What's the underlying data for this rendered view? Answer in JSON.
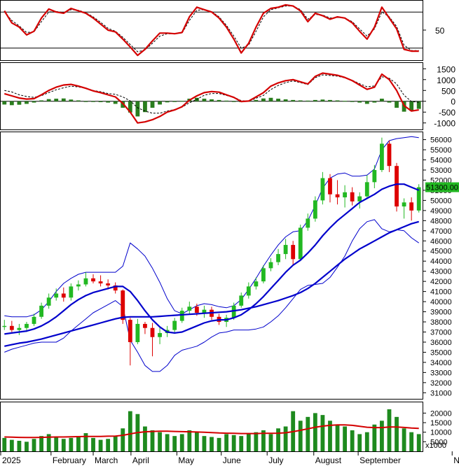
{
  "chart_data": [
    {
      "id": "stochastic",
      "type": "line",
      "yticks": [
        50
      ],
      "levels": [
        20,
        80
      ],
      "series": [
        {
          "color": "#d40000",
          "style": "solid",
          "values": [
            82,
            62,
            55,
            42,
            48,
            70,
            85,
            80,
            78,
            86,
            82,
            78,
            70,
            60,
            50,
            47,
            35,
            22,
            8,
            18,
            32,
            45,
            45,
            44,
            46,
            72,
            88,
            84,
            80,
            70,
            55,
            35,
            12,
            28,
            55,
            78,
            86,
            88,
            92,
            90,
            82,
            64,
            78,
            74,
            68,
            72,
            70,
            62,
            48,
            35,
            55,
            88,
            70,
            52,
            18,
            15,
            15
          ]
        },
        {
          "color": "#000000",
          "style": "dashed",
          "values": [
            80,
            66,
            57,
            46,
            47,
            64,
            80,
            81,
            79,
            84,
            83,
            79,
            72,
            63,
            53,
            48,
            38,
            26,
            14,
            17,
            28,
            40,
            44,
            44,
            45,
            66,
            83,
            84,
            81,
            72,
            58,
            40,
            20,
            25,
            48,
            72,
            84,
            87,
            90,
            90,
            84,
            68,
            76,
            75,
            70,
            71,
            70,
            64,
            52,
            40,
            52,
            80,
            72,
            56,
            25,
            16,
            16
          ]
        }
      ]
    },
    {
      "id": "macd",
      "type": "bar+line",
      "yticks": [
        1500,
        1000,
        500,
        0,
        -500,
        -1000
      ],
      "ylim": [
        -1300,
        1800
      ],
      "histogram": [
        -150,
        -180,
        -160,
        -120,
        -60,
        40,
        100,
        120,
        130,
        80,
        40,
        0,
        -20,
        -40,
        -60,
        -120,
        -300,
        -520,
        -700,
        -500,
        -300,
        -150,
        -50,
        -20,
        20,
        120,
        160,
        120,
        90,
        60,
        30,
        -10,
        -40,
        10,
        60,
        130,
        160,
        120,
        90,
        60,
        40,
        30,
        60,
        80,
        60,
        40,
        20,
        -20,
        -60,
        -120,
        -60,
        120,
        -60,
        -300,
        -480,
        -440,
        -350
      ],
      "series": [
        {
          "color": "#d40000",
          "style": "solid",
          "values": [
            350,
            250,
            150,
            100,
            120,
            300,
            500,
            650,
            750,
            780,
            700,
            600,
            480,
            400,
            300,
            200,
            -100,
            -500,
            -1000,
            -950,
            -850,
            -700,
            -500,
            -400,
            -250,
            50,
            250,
            400,
            450,
            420,
            300,
            180,
            -10,
            10,
            200,
            400,
            700,
            850,
            950,
            1000,
            900,
            800,
            1150,
            1300,
            1250,
            1200,
            1100,
            950,
            750,
            550,
            650,
            1250,
            1000,
            500,
            -200,
            -450,
            -400
          ]
        },
        {
          "color": "#000000",
          "style": "dashed",
          "values": [
            500,
            430,
            300,
            220,
            180,
            260,
            400,
            530,
            620,
            700,
            660,
            600,
            500,
            440,
            360,
            320,
            200,
            20,
            -300,
            -450,
            -550,
            -550,
            -450,
            -380,
            -270,
            -70,
            90,
            280,
            360,
            360,
            270,
            190,
            30,
            0,
            140,
            270,
            540,
            730,
            860,
            940,
            860,
            770,
            1090,
            1220,
            1190,
            1160,
            1080,
            970,
            810,
            670,
            710,
            1130,
            1060,
            800,
            280,
            -10,
            -50
          ]
        }
      ]
    },
    {
      "id": "price",
      "type": "candlestick",
      "yticks": [
        56000,
        55000,
        54000,
        53000,
        52000,
        51000,
        50000,
        49000,
        48000,
        47000,
        46000,
        45000,
        44000,
        43000,
        42000,
        41000,
        40000,
        39000,
        38000,
        37000,
        36000,
        35000,
        34000,
        33000,
        32000,
        31000
      ],
      "ylim": [
        30400,
        56800
      ],
      "last_price_label": "51300.00",
      "candles": [
        {
          "o": 37500,
          "h": 38200,
          "l": 37200,
          "c": 37600
        },
        {
          "o": 37600,
          "h": 38100,
          "l": 37000,
          "c": 37200
        },
        {
          "o": 37200,
          "h": 37800,
          "l": 36700,
          "c": 37400
        },
        {
          "o": 37400,
          "h": 38000,
          "l": 37000,
          "c": 37800
        },
        {
          "o": 37800,
          "h": 38800,
          "l": 37600,
          "c": 38500
        },
        {
          "o": 38500,
          "h": 39900,
          "l": 38300,
          "c": 39600
        },
        {
          "o": 39600,
          "h": 40800,
          "l": 39300,
          "c": 40400
        },
        {
          "o": 40400,
          "h": 41300,
          "l": 40100,
          "c": 40800
        },
        {
          "o": 40800,
          "h": 41400,
          "l": 40000,
          "c": 40400
        },
        {
          "o": 40400,
          "h": 41800,
          "l": 40100,
          "c": 41500
        },
        {
          "o": 41500,
          "h": 42100,
          "l": 41100,
          "c": 41700
        },
        {
          "o": 41700,
          "h": 42900,
          "l": 41500,
          "c": 42300
        },
        {
          "o": 42300,
          "h": 42700,
          "l": 41800,
          "c": 42000
        },
        {
          "o": 42000,
          "h": 42600,
          "l": 41500,
          "c": 41800
        },
        {
          "o": 41800,
          "h": 42200,
          "l": 41200,
          "c": 41600
        },
        {
          "o": 41600,
          "h": 41900,
          "l": 40800,
          "c": 41100
        },
        {
          "o": 41100,
          "h": 41200,
          "l": 37800,
          "c": 38200
        },
        {
          "o": 38200,
          "h": 38400,
          "l": 33700,
          "c": 36000
        },
        {
          "o": 36000,
          "h": 38300,
          "l": 35800,
          "c": 37800
        },
        {
          "o": 37800,
          "h": 38000,
          "l": 36800,
          "c": 37400
        },
        {
          "o": 37400,
          "h": 37900,
          "l": 34600,
          "c": 36500
        },
        {
          "o": 36500,
          "h": 37400,
          "l": 35800,
          "c": 36900
        },
        {
          "o": 36900,
          "h": 37600,
          "l": 36500,
          "c": 37200
        },
        {
          "o": 37200,
          "h": 38400,
          "l": 37000,
          "c": 38100
        },
        {
          "o": 38100,
          "h": 39400,
          "l": 37900,
          "c": 39100
        },
        {
          "o": 39100,
          "h": 40000,
          "l": 38700,
          "c": 39500
        },
        {
          "o": 39500,
          "h": 39800,
          "l": 38600,
          "c": 38900
        },
        {
          "o": 38900,
          "h": 39600,
          "l": 38400,
          "c": 39200
        },
        {
          "o": 39200,
          "h": 39500,
          "l": 38200,
          "c": 38500
        },
        {
          "o": 38500,
          "h": 38800,
          "l": 37700,
          "c": 38000
        },
        {
          "o": 38000,
          "h": 38700,
          "l": 37500,
          "c": 38400
        },
        {
          "o": 38400,
          "h": 39900,
          "l": 38200,
          "c": 39600
        },
        {
          "o": 39600,
          "h": 40900,
          "l": 39400,
          "c": 40600
        },
        {
          "o": 40600,
          "h": 41900,
          "l": 40300,
          "c": 41500
        },
        {
          "o": 41500,
          "h": 42400,
          "l": 41200,
          "c": 42000
        },
        {
          "o": 42000,
          "h": 43600,
          "l": 41800,
          "c": 43300
        },
        {
          "o": 43300,
          "h": 44300,
          "l": 43000,
          "c": 43900
        },
        {
          "o": 43900,
          "h": 45200,
          "l": 43600,
          "c": 44700
        },
        {
          "o": 44700,
          "h": 46200,
          "l": 44200,
          "c": 45600
        },
        {
          "o": 45600,
          "h": 46000,
          "l": 43600,
          "c": 44200
        },
        {
          "o": 44200,
          "h": 47600,
          "l": 44000,
          "c": 47300
        },
        {
          "o": 47300,
          "h": 48700,
          "l": 47000,
          "c": 48200
        },
        {
          "o": 48200,
          "h": 50400,
          "l": 47900,
          "c": 50000
        },
        {
          "o": 50000,
          "h": 52800,
          "l": 49600,
          "c": 52200
        },
        {
          "o": 52200,
          "h": 52600,
          "l": 49800,
          "c": 50600
        },
        {
          "o": 50600,
          "h": 52000,
          "l": 49600,
          "c": 50300
        },
        {
          "o": 50300,
          "h": 51500,
          "l": 49300,
          "c": 50800
        },
        {
          "o": 50800,
          "h": 51300,
          "l": 49500,
          "c": 49900
        },
        {
          "o": 49900,
          "h": 50800,
          "l": 49200,
          "c": 50400
        },
        {
          "o": 50400,
          "h": 52500,
          "l": 50200,
          "c": 51800
        },
        {
          "o": 51800,
          "h": 53500,
          "l": 51200,
          "c": 53000
        },
        {
          "o": 53000,
          "h": 56200,
          "l": 52800,
          "c": 55600
        },
        {
          "o": 55600,
          "h": 55900,
          "l": 52800,
          "c": 53400
        },
        {
          "o": 53400,
          "h": 53700,
          "l": 48900,
          "c": 49400
        },
        {
          "o": 49400,
          "h": 50200,
          "l": 48200,
          "c": 49800
        },
        {
          "o": 49800,
          "h": 50300,
          "l": 48000,
          "c": 49000
        },
        {
          "o": 49000,
          "h": 51600,
          "l": 48800,
          "c": 51300
        }
      ],
      "series": [
        {
          "color": "#0000cc",
          "role": "ma20",
          "values": [
            36800,
            36900,
            37000,
            37100,
            37300,
            37600,
            38000,
            38500,
            39100,
            39700,
            40200,
            40600,
            40900,
            41100,
            41300,
            41500,
            41500,
            41000,
            40100,
            39100,
            38200,
            37500,
            37000,
            36900,
            37000,
            37300,
            37600,
            37900,
            38100,
            38200,
            38200,
            38400,
            38700,
            39200,
            39800,
            40500,
            41300,
            42100,
            42900,
            43600,
            44100,
            44800,
            45600,
            46500,
            47300,
            48000,
            48600,
            49200,
            49800,
            50200,
            50600,
            51100,
            51400,
            51600,
            51600,
            51300,
            51000
          ]
        },
        {
          "color": "#0000cc",
          "role": "ma50",
          "values": [
            35600,
            35750,
            35900,
            36000,
            36150,
            36300,
            36500,
            36700,
            36900,
            37100,
            37300,
            37500,
            37700,
            37900,
            38100,
            38300,
            38450,
            38500,
            38500,
            38500,
            38500,
            38550,
            38600,
            38650,
            38700,
            38750,
            38800,
            38850,
            38900,
            38950,
            39000,
            39100,
            39200,
            39350,
            39500,
            39700,
            39900,
            40100,
            40350,
            40600,
            40900,
            41300,
            41800,
            42400,
            43000,
            43600,
            44200,
            44700,
            45200,
            45600,
            46000,
            46400,
            46800,
            47100,
            47400,
            47700,
            47900
          ]
        },
        {
          "color": "#0000cc",
          "role": "bb-upper",
          "values": [
            38600,
            38500,
            38500,
            38500,
            38700,
            39200,
            40000,
            41000,
            41800,
            42300,
            42700,
            42900,
            42900,
            42900,
            42900,
            42900,
            43500,
            45800,
            45200,
            44500,
            43300,
            41900,
            40300,
            39100,
            38800,
            39200,
            39600,
            39800,
            39700,
            39500,
            39400,
            39600,
            40200,
            41200,
            42300,
            43500,
            44600,
            45600,
            46400,
            46900,
            47000,
            48000,
            49500,
            51200,
            52200,
            52600,
            52700,
            52400,
            52400,
            52500,
            53100,
            55000,
            55900,
            56100,
            56200,
            56300,
            56200
          ]
        },
        {
          "color": "#0000cc",
          "role": "bb-lower",
          "values": [
            35000,
            35300,
            35500,
            35700,
            35900,
            36000,
            36000,
            36000,
            36400,
            37100,
            37700,
            38300,
            38900,
            39300,
            39700,
            40100,
            39500,
            36200,
            35000,
            33700,
            33100,
            33100,
            33700,
            34700,
            35200,
            35400,
            35600,
            36000,
            36500,
            36900,
            37000,
            37200,
            37200,
            37200,
            37300,
            37500,
            38000,
            38600,
            39400,
            40300,
            41200,
            41600,
            41700,
            41800,
            42400,
            43400,
            44500,
            46000,
            47200,
            47900,
            48100,
            47200,
            46900,
            47100,
            47000,
            46300,
            45800
          ]
        }
      ]
    },
    {
      "id": "volume",
      "type": "bar+line",
      "yticks": [
        20000,
        15000,
        10000,
        5000
      ],
      "ylim": [
        0,
        26000
      ],
      "unit_label": "x1000",
      "volume": [
        7000,
        6000,
        5500,
        5000,
        6500,
        8000,
        9000,
        7500,
        6500,
        7000,
        8000,
        9500,
        7000,
        6000,
        6500,
        8000,
        12000,
        21000,
        19500,
        13000,
        11000,
        10000,
        9000,
        8000,
        9000,
        11000,
        10000,
        8000,
        7500,
        7000,
        9000,
        8500,
        8000,
        9000,
        10000,
        11000,
        9000,
        12000,
        13000,
        21000,
        16000,
        18000,
        20000,
        19000,
        16000,
        14000,
        13000,
        11000,
        9000,
        10000,
        14000,
        16000,
        22000,
        18000,
        12000,
        10000,
        9000
      ],
      "series": [
        {
          "color": "#d40000",
          "role": "volume-ma",
          "values": [
            7500,
            7400,
            7300,
            7200,
            7200,
            7300,
            7400,
            7500,
            7500,
            7600,
            7700,
            7800,
            7800,
            7800,
            7900,
            8000,
            8400,
            9100,
            9800,
            10200,
            10400,
            10500,
            10500,
            10400,
            10300,
            10200,
            10100,
            10000,
            9800,
            9600,
            9500,
            9400,
            9300,
            9300,
            9300,
            9400,
            9400,
            9500,
            9700,
            10300,
            11000,
            11800,
            12600,
            13200,
            13600,
            13800,
            13800,
            13600,
            13100,
            12600,
            12400,
            12400,
            12700,
            12700,
            12500,
            12200,
            12000
          ]
        }
      ]
    }
  ],
  "x_axis": {
    "labels": [
      {
        "text": "2025",
        "index": 0
      },
      {
        "text": "February",
        "index": 6.8
      },
      {
        "text": "March",
        "index": 12.5
      },
      {
        "text": "April",
        "index": 17.6
      },
      {
        "text": "May",
        "index": 23.8
      },
      {
        "text": "June",
        "index": 29.8
      },
      {
        "text": "July",
        "index": 36
      },
      {
        "text": "August",
        "index": 42.3
      },
      {
        "text": "September",
        "index": 48.3
      },
      {
        "text": "No",
        "index": 61
      }
    ],
    "count": 57
  }
}
